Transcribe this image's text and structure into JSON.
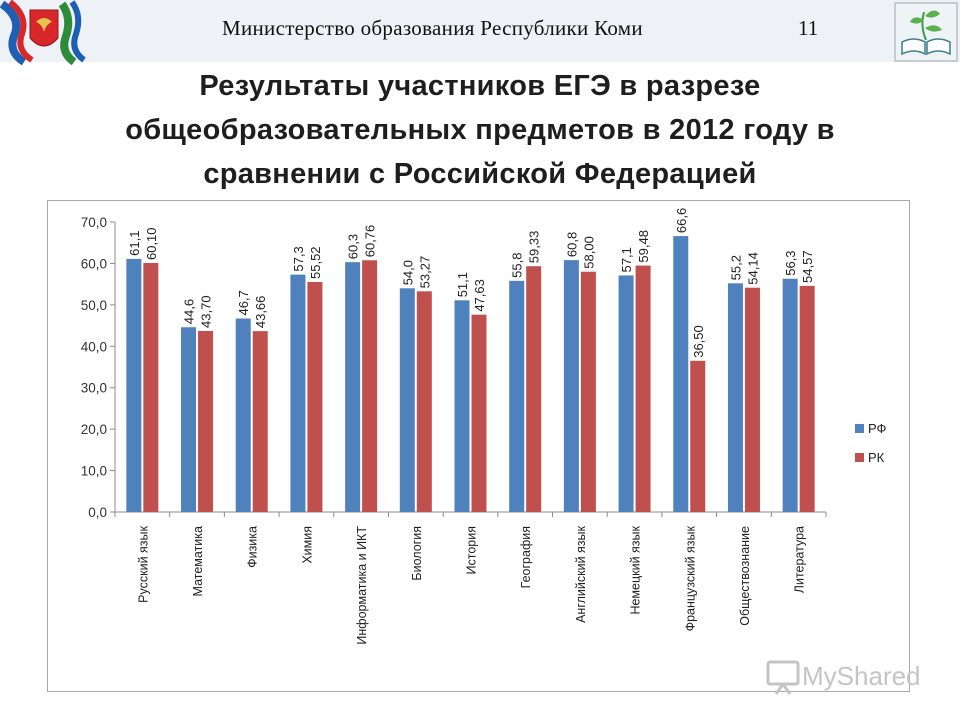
{
  "header": {
    "ministry": "Министерство  образования  Республики  Коми",
    "page_number": "11"
  },
  "title": {
    "line1": "Результаты участников ЕГЭ в разрезе",
    "line2": "общеобразовательных предметов в 2012 году в",
    "line3": "сравнении с Российской Федерацией"
  },
  "watermark": {
    "text": "MyShared"
  },
  "chart_data": {
    "type": "bar",
    "categories": [
      "Русский язык",
      "Математика",
      "Физика",
      "Химия",
      "Информатика и ИКТ",
      "Биология",
      "История",
      "География",
      "Английский язык",
      "Немецкий язык",
      "Французский язык",
      "Обществознание",
      "Литература"
    ],
    "series": [
      {
        "name": "РФ",
        "color": "#4f81bd",
        "values": [
          61.1,
          44.6,
          46.7,
          57.3,
          60.3,
          54.0,
          51.1,
          55.8,
          60.8,
          57.1,
          66.6,
          55.2,
          56.3
        ],
        "labels": [
          "61,1",
          "44,6",
          "46,7",
          "57,3",
          "60,3",
          "54,0",
          "51,1",
          "55,8",
          "60,8",
          "57,1",
          "66,6",
          "55,2",
          "56,3"
        ]
      },
      {
        "name": "РК",
        "color": "#c0504d",
        "values": [
          60.1,
          43.7,
          43.66,
          55.52,
          60.76,
          53.27,
          47.63,
          59.33,
          58.0,
          59.48,
          36.5,
          54.14,
          54.57
        ],
        "labels": [
          "60,10",
          "43,70",
          "43,66",
          "55,52",
          "60,76",
          "53,27",
          "47,63",
          "59,33",
          "58,00",
          "59,48",
          "36,50",
          "54,14",
          "54,57"
        ]
      }
    ],
    "yticks": [
      "0,0",
      "10,0",
      "20,0",
      "30,0",
      "40,0",
      "50,0",
      "60,0",
      "70,0"
    ],
    "ylim": [
      0,
      70
    ],
    "legend_position": "right",
    "grid": false
  }
}
